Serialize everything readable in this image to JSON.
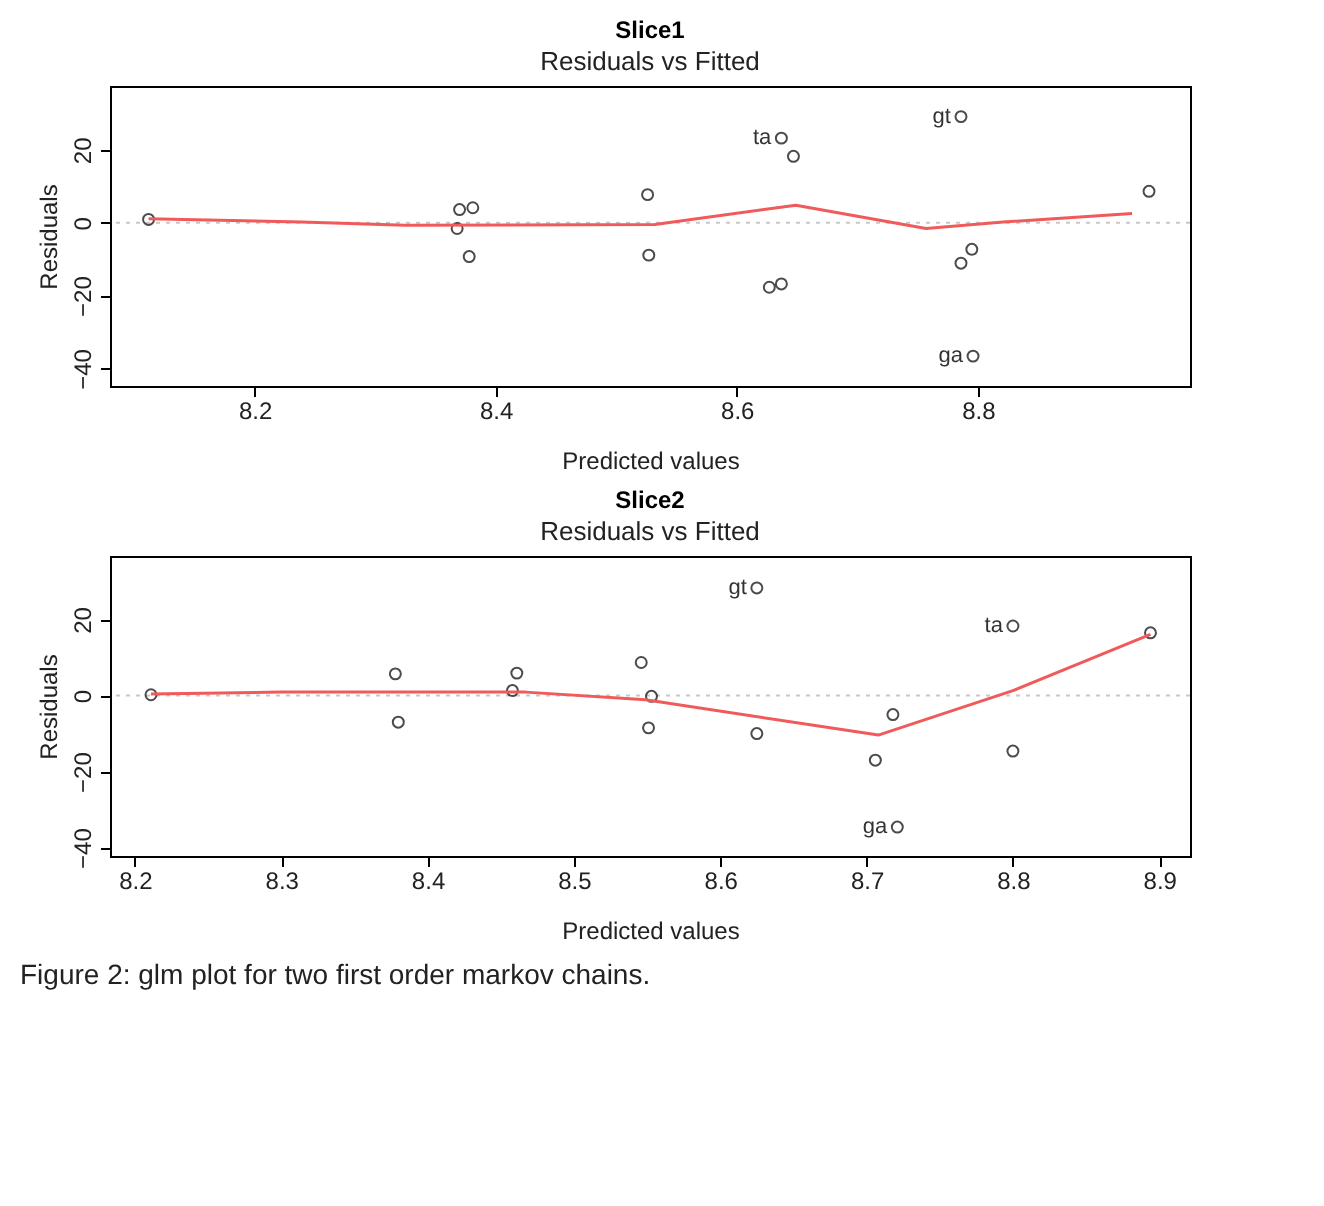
{
  "chart_data": [
    {
      "type": "scatter",
      "title": "Slice1",
      "subtitle": "Residuals vs Fitted",
      "xlabel": "Predicted values",
      "ylabel": "Residuals",
      "xlim": [
        8.08,
        8.976
      ],
      "ylim": [
        -44.8,
        37.5
      ],
      "xticks": [
        8.2,
        8.4,
        8.6,
        8.8
      ],
      "yticks": [
        -40,
        -20,
        0,
        20
      ],
      "grid": false,
      "series": [
        {
          "marker": "circle",
          "color": "#000000",
          "x": [
            8.112,
            8.368,
            8.37,
            8.381,
            8.378,
            8.526,
            8.527,
            8.637,
            8.647,
            8.627,
            8.637,
            8.786,
            8.786,
            8.795,
            8.796,
            8.942
          ],
          "values": [
            0.9,
            -1.6,
            3.6,
            4.1,
            -9.3,
            7.7,
            -8.9,
            23.2,
            18.2,
            -17.7,
            -16.8,
            29.1,
            -11.1,
            -7.3,
            -36.6,
            8.6
          ]
        },
        {
          "type": "line",
          "color": "#f05a5a",
          "line_style": "solid",
          "x": [
            8.112,
            8.239,
            8.325,
            8.532,
            8.649,
            8.757,
            8.821,
            8.928
          ],
          "values": [
            1.1,
            0.2,
            -0.7,
            -0.5,
            4.8,
            -1.6,
            0.2,
            2.5
          ]
        }
      ],
      "ref_lines": [
        {
          "axis": "y",
          "value": 0,
          "label": null,
          "color": "#c8c8c8",
          "line_style": "dotted"
        }
      ],
      "annotations": [
        {
          "text": "ta",
          "x": 8.637,
          "y": 23.2
        },
        {
          "text": "gt",
          "x": 8.786,
          "y": 29.1
        },
        {
          "text": "ga",
          "x": 8.796,
          "y": -36.6
        }
      ]
    },
    {
      "type": "scatter",
      "title": "Slice2",
      "subtitle": "Residuals vs Fitted",
      "xlabel": "Predicted values",
      "ylabel": "Residuals",
      "xlim": [
        8.183,
        8.921
      ],
      "ylim": [
        -42.2,
        36.7
      ],
      "xticks": [
        8.2,
        8.3,
        8.4,
        8.5,
        8.6,
        8.7,
        8.8,
        8.9
      ],
      "yticks": [
        -40,
        -20,
        0,
        20
      ],
      "grid": false,
      "series": [
        {
          "marker": "circle",
          "color": "#000000",
          "x": [
            8.211,
            8.378,
            8.38,
            8.461,
            8.458,
            8.546,
            8.553,
            8.551,
            8.625,
            8.625,
            8.706,
            8.718,
            8.721,
            8.8,
            8.8,
            8.894
          ],
          "values": [
            0.2,
            5.7,
            -7.0,
            5.9,
            1.3,
            8.7,
            -0.2,
            -8.5,
            28.3,
            -10.0,
            -17.0,
            -5.0,
            -34.6,
            18.3,
            -14.6,
            16.5
          ]
        },
        {
          "type": "line",
          "color": "#f05a5a",
          "line_style": "solid",
          "x": [
            8.211,
            8.3,
            8.467,
            8.549,
            8.708,
            8.8,
            8.894
          ],
          "values": [
            0.4,
            0.9,
            0.9,
            -1.1,
            -10.4,
            1.3,
            16.1
          ]
        }
      ],
      "ref_lines": [
        {
          "axis": "y",
          "value": 0,
          "label": null,
          "color": "#c8c8c8",
          "line_style": "dotted"
        }
      ],
      "annotations": [
        {
          "text": "gt",
          "x": 8.625,
          "y": 28.3
        },
        {
          "text": "ta",
          "x": 8.8,
          "y": 18.3
        },
        {
          "text": "ga",
          "x": 8.721,
          "y": -34.6
        },
        "Figure 2: glm plot for two first order markov chains."
      ]
    }
  ]
}
